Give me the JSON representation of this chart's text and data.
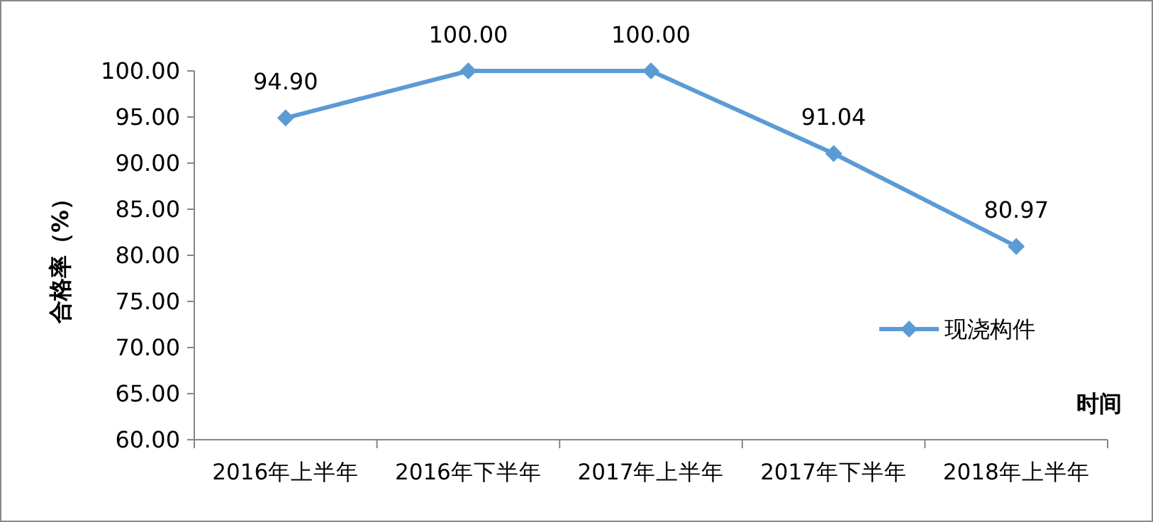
{
  "chart_data": {
    "type": "line",
    "ylabel": "合格率（%）",
    "xlabel": "时间",
    "categories": [
      "2016年上半年",
      "2016年下半年",
      "2017年上半年",
      "2017年下半年",
      "2018年上半年"
    ],
    "series": [
      {
        "name": "现浇构件",
        "color": "#5b9bd5",
        "values": [
          94.9,
          100.0,
          100.0,
          91.04,
          80.97
        ]
      }
    ],
    "ylim": [
      60,
      100
    ],
    "yticks": [
      {
        "value": 60,
        "label": "60.00"
      },
      {
        "value": 65,
        "label": "65.00"
      },
      {
        "value": 70,
        "label": "70.00"
      },
      {
        "value": 75,
        "label": "75.00"
      },
      {
        "value": 80,
        "label": "80.00"
      },
      {
        "value": 85,
        "label": "85.00"
      },
      {
        "value": 90,
        "label": "90.00"
      },
      {
        "value": 95,
        "label": "95.00"
      },
      {
        "value": 100,
        "label": "100.00"
      }
    ],
    "value_labels": [
      "94.90",
      "100.00",
      "100.00",
      "91.04",
      "80.97"
    ],
    "grid": false,
    "legend": "right",
    "marker": "diamond",
    "line_style": "solid"
  }
}
